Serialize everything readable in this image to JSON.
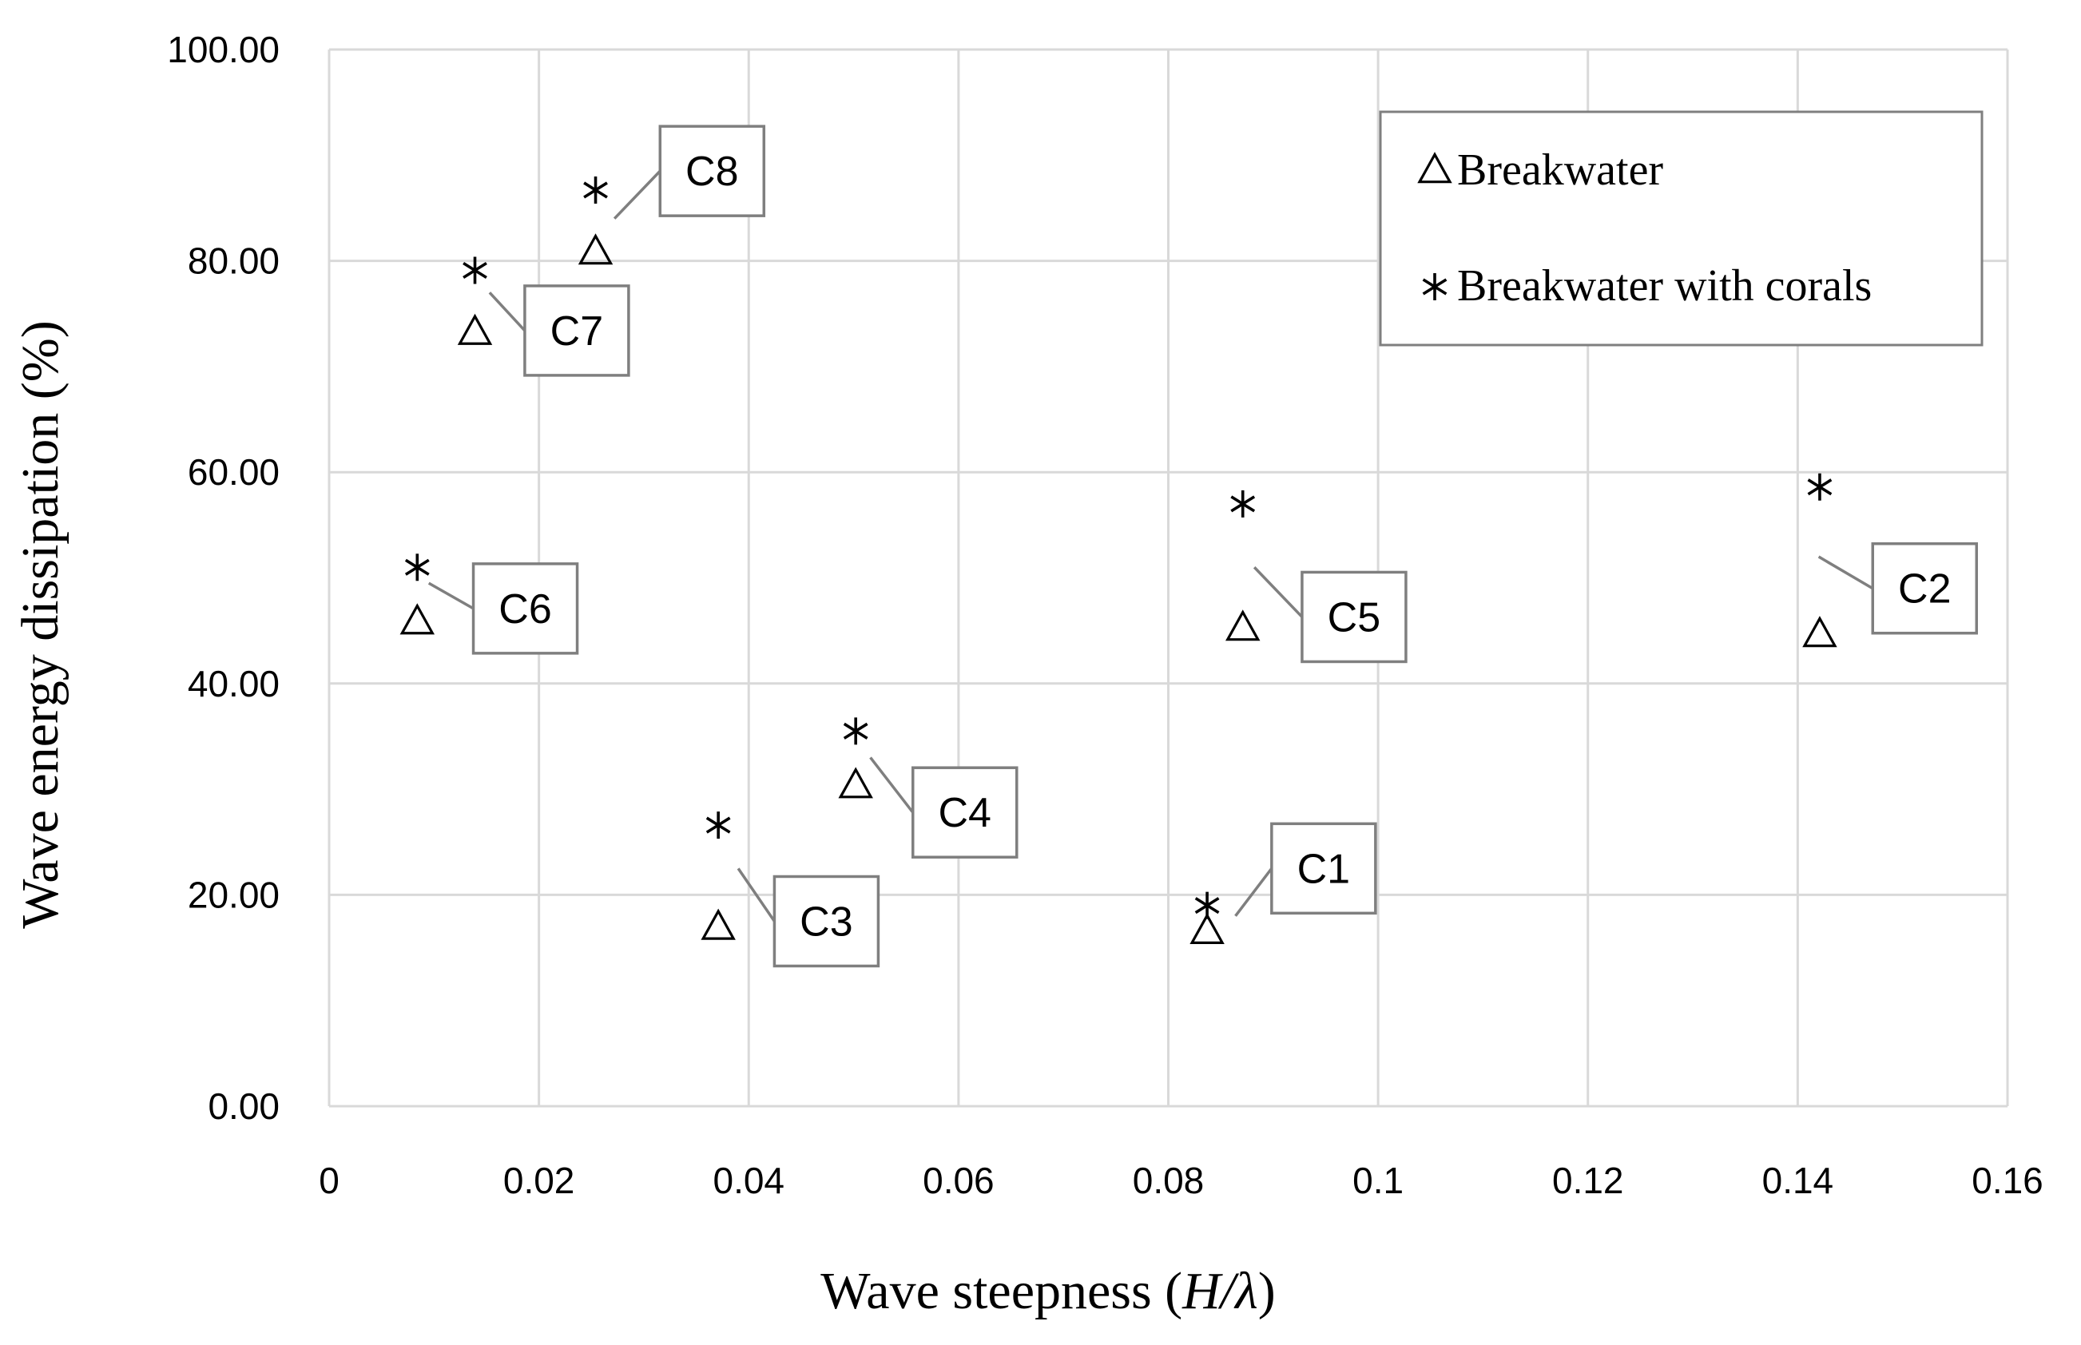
{
  "chart_data": {
    "type": "scatter",
    "title": "",
    "xlabel_prefix": "Wave steepness (",
    "xlabel_italic": "H/λ",
    "xlabel_suffix": ")",
    "ylabel": "Wave energy dissipation (%)",
    "xlim": [
      0,
      0.16
    ],
    "ylim": [
      0,
      100
    ],
    "x_ticks": [
      0,
      0.02,
      0.04,
      0.06,
      0.08,
      0.1,
      0.12,
      0.14,
      0.16
    ],
    "x_tick_labels": [
      "0",
      "0.02",
      "0.04",
      "0.06",
      "0.08",
      "0.1",
      "0.12",
      "0.14",
      "0.16"
    ],
    "y_ticks": [
      0,
      20,
      40,
      60,
      80,
      100
    ],
    "y_tick_labels": [
      "0.00",
      "20.00",
      "40.00",
      "60.00",
      "80.00",
      "100.00"
    ],
    "grid": true,
    "legend_position": "top-right",
    "series": [
      {
        "name": "Breakwater",
        "marker": "triangle",
        "points": [
          {
            "label": "C1",
            "x": 0.0837,
            "y": 16.5
          },
          {
            "label": "C2",
            "x": 0.1421,
            "y": 44.6
          },
          {
            "label": "C3",
            "x": 0.0371,
            "y": 16.9
          },
          {
            "label": "C4",
            "x": 0.0502,
            "y": 30.3
          },
          {
            "label": "C5",
            "x": 0.0871,
            "y": 45.2
          },
          {
            "label": "C6",
            "x": 0.0084,
            "y": 45.8
          },
          {
            "label": "C7",
            "x": 0.0139,
            "y": 73.2
          },
          {
            "label": "C8",
            "x": 0.0254,
            "y": 80.8
          }
        ]
      },
      {
        "name": "Breakwater with corals",
        "marker": "asterisk",
        "points": [
          {
            "label": "C1",
            "x": 0.0837,
            "y": 19.0
          },
          {
            "label": "C2",
            "x": 0.1421,
            "y": 58.6
          },
          {
            "label": "C3",
            "x": 0.0371,
            "y": 26.6
          },
          {
            "label": "C4",
            "x": 0.0502,
            "y": 35.5
          },
          {
            "label": "C5",
            "x": 0.0871,
            "y": 57.0
          },
          {
            "label": "C6",
            "x": 0.0084,
            "y": 51.0
          },
          {
            "label": "C7",
            "x": 0.0139,
            "y": 79.1
          },
          {
            "label": "C8",
            "x": 0.0254,
            "y": 86.7
          }
        ]
      }
    ],
    "callouts": [
      {
        "text": "C1",
        "box_x": 0.0948,
        "box_y": 22.5,
        "leader_x": 0.0864,
        "leader_y": 18.0
      },
      {
        "text": "C2",
        "box_x": 0.1521,
        "box_y": 49.0,
        "leader_x": 0.142,
        "leader_y": 52.0
      },
      {
        "text": "C3",
        "box_x": 0.0474,
        "box_y": 17.5,
        "leader_x": 0.039,
        "leader_y": 22.5
      },
      {
        "text": "C4",
        "box_x": 0.0606,
        "box_y": 27.8,
        "leader_x": 0.0516,
        "leader_y": 33.0
      },
      {
        "text": "C5",
        "box_x": 0.0977,
        "box_y": 46.3,
        "leader_x": 0.0882,
        "leader_y": 51.0
      },
      {
        "text": "C6",
        "box_x": 0.0187,
        "box_y": 47.1,
        "leader_x": 0.0095,
        "leader_y": 49.5
      },
      {
        "text": "C7",
        "box_x": 0.0236,
        "box_y": 73.4,
        "leader_x": 0.0153,
        "leader_y": 77.0
      },
      {
        "text": "C8",
        "box_x": 0.0365,
        "box_y": 88.5,
        "leader_x": 0.0272,
        "leader_y": 84.0
      }
    ]
  }
}
